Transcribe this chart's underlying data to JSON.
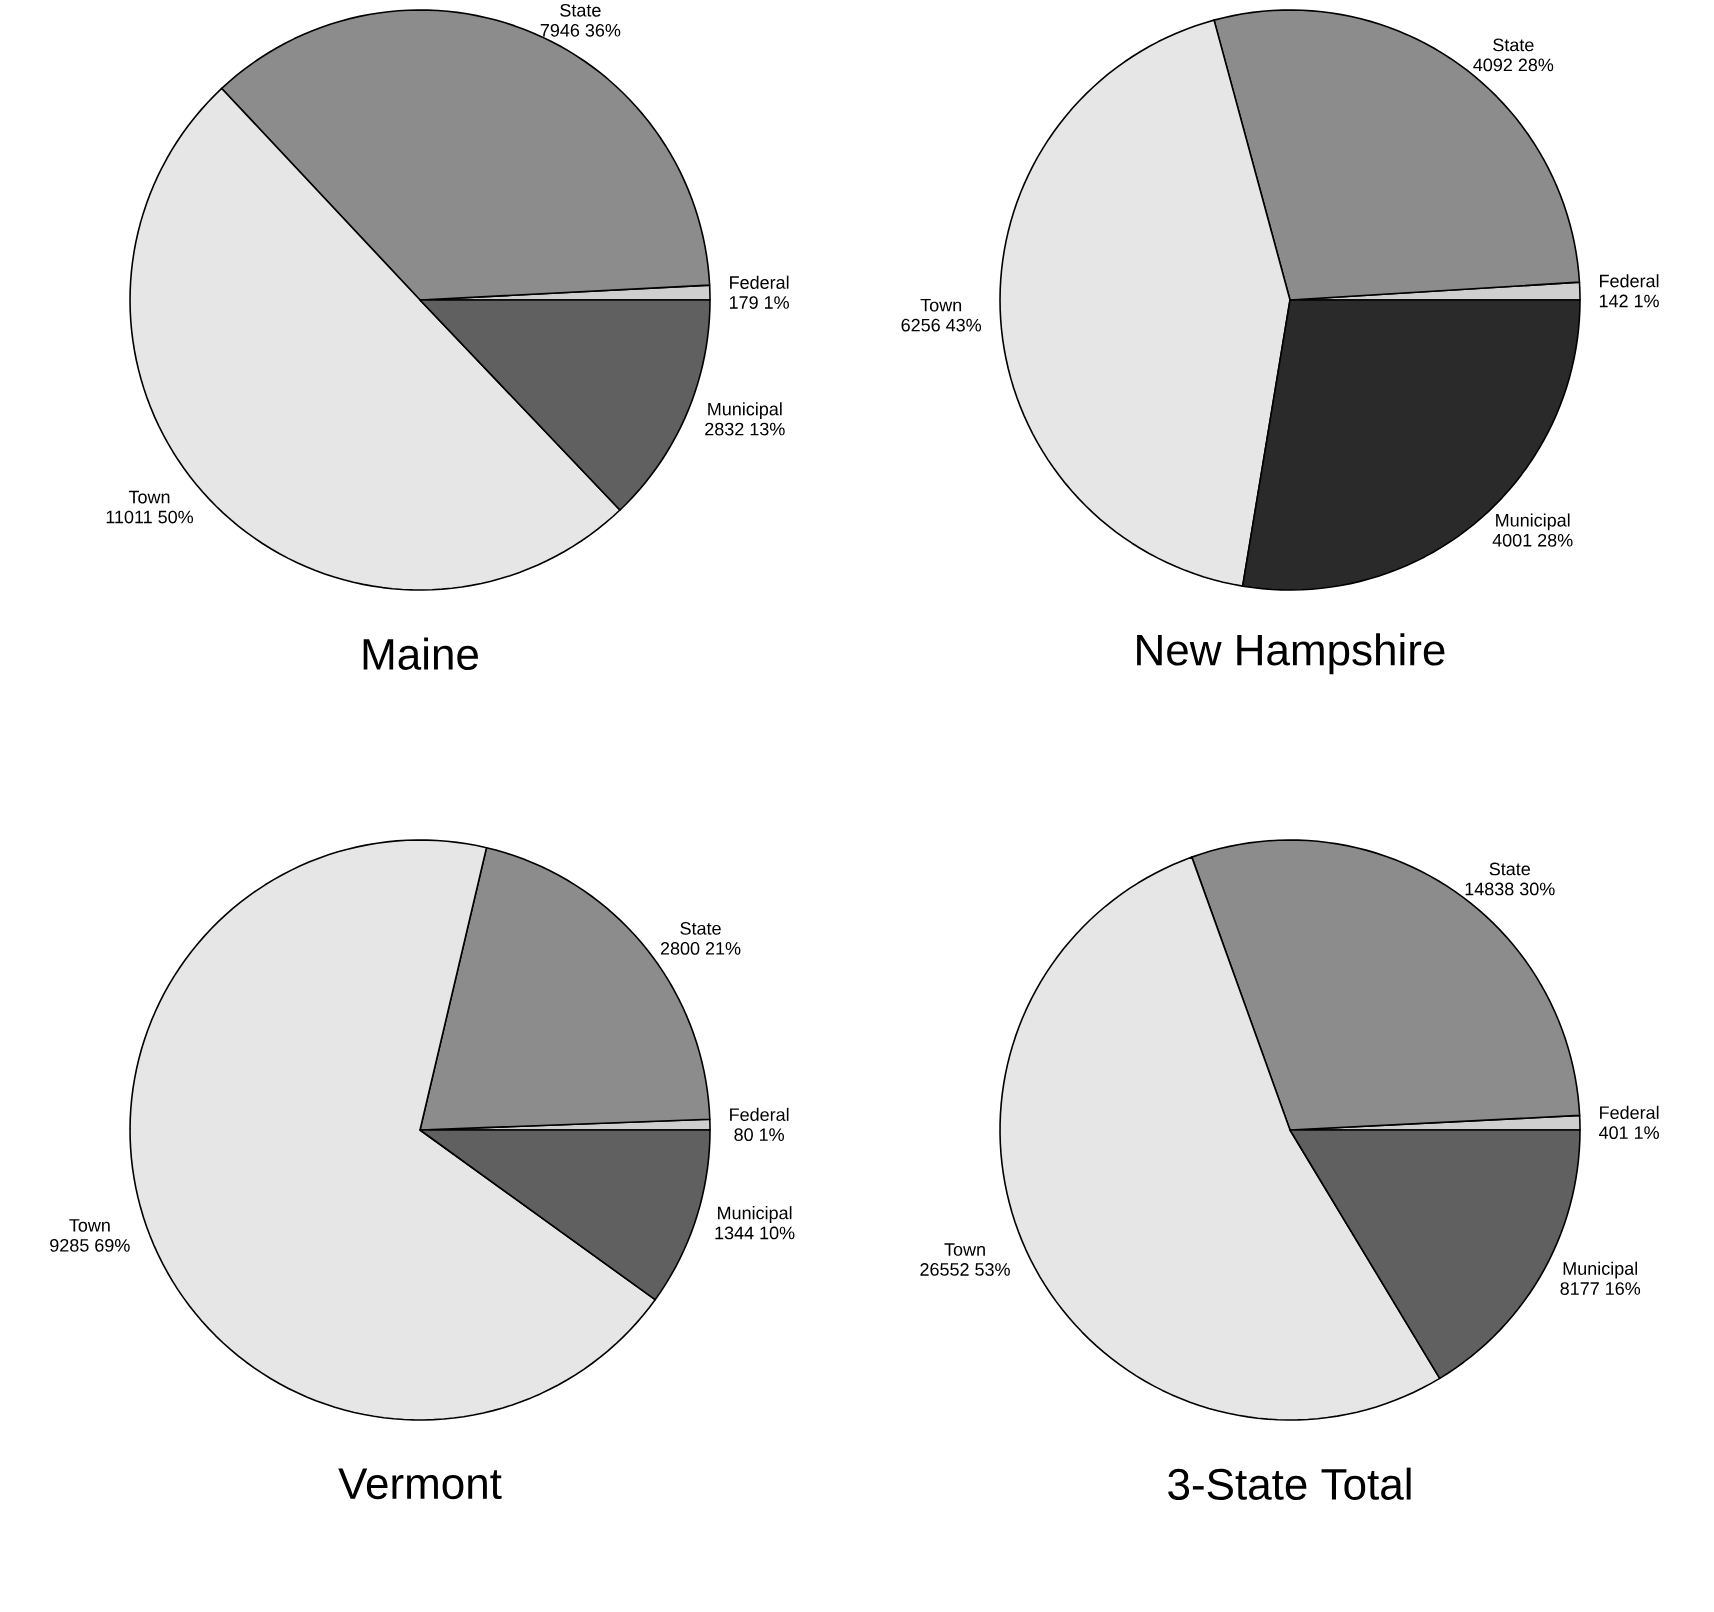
{
  "chart_data": [
    {
      "type": "pie",
      "title": "Maine",
      "categories": [
        "Federal",
        "State",
        "Town",
        "Municipal"
      ],
      "values": [
        179,
        7946,
        11011,
        2832
      ],
      "value_labels": [
        "179 1%",
        "7946 36%",
        "11011 50%",
        "2832 13%"
      ],
      "colors": [
        "#cfcfcf",
        "#8c8c8c",
        "#e6e6e6",
        "#606060"
      ]
    },
    {
      "type": "pie",
      "title": "New Hampshire",
      "categories": [
        "Federal",
        "State",
        "Town",
        "Municipal"
      ],
      "values": [
        142,
        4092,
        6256,
        4001
      ],
      "value_labels": [
        "142 1%",
        "4092 28%",
        "6256 43%",
        "4001 28%"
      ],
      "colors": [
        "#cfcfcf",
        "#8c8c8c",
        "#e6e6e6",
        "#2a2a2a"
      ]
    },
    {
      "type": "pie",
      "title": "Vermont",
      "categories": [
        "Federal",
        "State",
        "Town",
        "Municipal"
      ],
      "values": [
        80,
        2800,
        9285,
        1344
      ],
      "value_labels": [
        "80 1%",
        "2800 21%",
        "9285 69%",
        "1344 10%"
      ],
      "colors": [
        "#cfcfcf",
        "#8c8c8c",
        "#e6e6e6",
        "#606060"
      ]
    },
    {
      "type": "pie",
      "title": "3-State Total",
      "categories": [
        "Federal",
        "State",
        "Town",
        "Municipal"
      ],
      "values": [
        401,
        14838,
        26552,
        8177
      ],
      "value_labels": [
        "401 1%",
        "14838 30%",
        "26552 53%",
        "8177 16%"
      ],
      "colors": [
        "#cfcfcf",
        "#8c8c8c",
        "#e6e6e6",
        "#606060"
      ]
    }
  ]
}
